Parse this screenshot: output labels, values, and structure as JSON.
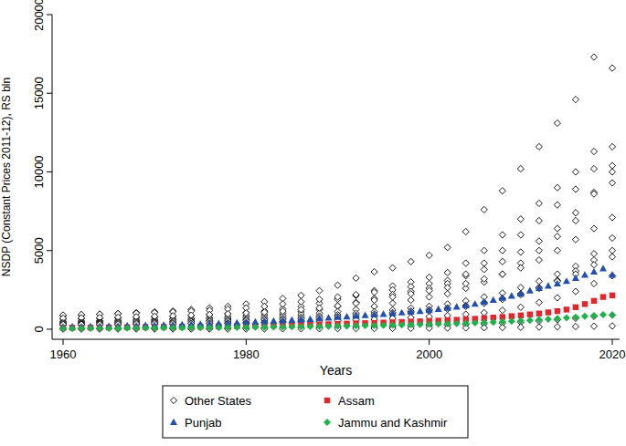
{
  "chart_data": {
    "type": "scatter",
    "x_label": "Years",
    "y_label": "NSDP (Constant Prices 2011-12), RS bln",
    "xlim": [
      1958.8,
      2020.8
    ],
    "xticks": [
      1960,
      1980,
      2000,
      2020
    ],
    "ylim": [
      -640,
      20000
    ],
    "yticks": [
      0,
      5000,
      10000,
      15000,
      20000
    ],
    "grid": false,
    "legend": "bottom",
    "series": [
      {
        "name": "Other States",
        "color": "#000000",
        "marker": "diamond_open",
        "x": [
          1960,
          1962,
          1964,
          1966,
          1968,
          1970,
          1972,
          1974,
          1976,
          1978,
          1980,
          1982,
          1984,
          1986,
          1988,
          1990,
          1992,
          1994,
          1996,
          1998,
          2000,
          2002,
          2004,
          2006,
          2008,
          2010,
          2012,
          2014,
          2016,
          2018,
          2020,
          1960,
          1962,
          1964,
          1966,
          1968,
          1970,
          1972,
          1974,
          1976,
          1978,
          1980,
          1982,
          1984,
          1986,
          1988,
          1990,
          1992,
          1994,
          1996,
          1998,
          2000,
          2002,
          2004,
          2006,
          2008,
          2010,
          2012,
          2014,
          2016,
          2018,
          2020,
          1960,
          1962,
          1964,
          1966,
          1968,
          1970,
          1972,
          1974,
          1976,
          1978,
          1980,
          1982,
          1984,
          1986,
          1988,
          1990,
          1992,
          1994,
          1996,
          1998,
          2000,
          2002,
          2004,
          2006,
          2008,
          2010,
          2012,
          2014,
          2016,
          2018,
          2020,
          1960,
          1962,
          1964,
          1966,
          1968,
          1970,
          1972,
          1974,
          1976,
          1978,
          1980,
          1982,
          1984,
          1986,
          1988,
          1990,
          1992,
          1994,
          1996,
          1998,
          2000,
          2002,
          2004,
          2006,
          2008,
          2010,
          2012,
          2014,
          2016,
          2018,
          2020,
          1960,
          1962,
          1964,
          1966,
          1968,
          1970,
          1972,
          1974,
          1976,
          1978,
          1980,
          1982,
          1984,
          1986,
          1988,
          1990,
          1992,
          1994,
          1996,
          1998,
          2000,
          2002,
          2004,
          2006,
          2008,
          2010,
          2012,
          2014,
          2016,
          2018,
          2020,
          1960,
          1962,
          1964,
          1966,
          1968,
          1970,
          1972,
          1974,
          1976,
          1978,
          1980,
          1982,
          1984,
          1986,
          1988,
          1990,
          1992,
          1994,
          1996,
          1998,
          2000,
          2002,
          2004,
          2006,
          2008,
          2010,
          2012,
          2014,
          2016,
          2018,
          2020,
          1960,
          1962,
          1964,
          1966,
          1968,
          1970,
          1972,
          1974,
          1976,
          1978,
          1980,
          1982,
          1984,
          1986,
          1988,
          1990,
          1992,
          1994,
          1996,
          1998,
          2000,
          2002,
          2004,
          2006,
          2008,
          2010,
          2012,
          2014,
          2016,
          2018,
          2020,
          1960,
          1962,
          1964,
          1966,
          1968,
          1970,
          1972,
          1974,
          1976,
          1978,
          1980,
          1982,
          1984,
          1986,
          1988,
          1990,
          1992,
          1994,
          1996,
          1998,
          2000,
          2002,
          2004,
          2006,
          2008,
          2010,
          2012,
          2014,
          2016,
          2018,
          2020,
          1960,
          1962,
          1964,
          1966,
          1968,
          1970,
          1972,
          1974,
          1976,
          1978,
          1980,
          1982,
          1984,
          1986,
          1988,
          1990,
          1992,
          1994,
          1996,
          1998,
          2000,
          2002,
          2004,
          2006,
          2008,
          2010,
          2012,
          2014,
          2016,
          2018,
          2020,
          1960,
          1962,
          1964,
          1966,
          1968,
          1970,
          1972,
          1974,
          1976,
          1978,
          1980,
          1982,
          1984,
          1986,
          1988,
          1990,
          1992,
          1994,
          1996,
          1998,
          2000,
          2002,
          2004,
          2006,
          2008,
          2010,
          2012,
          2014,
          2016,
          2018,
          2020,
          1960,
          1962,
          1964,
          1966,
          1968,
          1970,
          1972,
          1974,
          1976,
          1978,
          1980,
          1982,
          1984,
          1986,
          1988,
          1990,
          1992,
          1994,
          1996,
          1998,
          2000,
          2002,
          2004,
          2006,
          2008,
          2010,
          2012,
          2014,
          2016,
          2018,
          2020,
          1960,
          1962,
          1964,
          1966,
          1968,
          1970,
          1972,
          1974,
          1976,
          1978,
          1980,
          1982,
          1984,
          1986,
          1988,
          1990,
          1992,
          1994,
          1996,
          1998,
          2000,
          2002,
          2004,
          2006,
          2008,
          2010,
          2012,
          2014,
          2016,
          2018,
          2020
        ],
        "values": [
          850,
          900,
          950,
          1000,
          1050,
          1100,
          1150,
          1250,
          1350,
          1450,
          1600,
          1750,
          1950,
          2150,
          2450,
          2800,
          3250,
          3650,
          3900,
          4300,
          4700,
          5200,
          6200,
          7600,
          8800,
          10200,
          11600,
          13100,
          14600,
          17300,
          16600,
          650,
          680,
          700,
          720,
          750,
          780,
          820,
          870,
          920,
          980,
          1050,
          1150,
          1300,
          1450,
          1650,
          1900,
          2150,
          2450,
          2750,
          3000,
          3300,
          3600,
          4200,
          5000,
          6000,
          7000,
          8000,
          9000,
          10000,
          11300,
          11600,
          900,
          930,
          960,
          990,
          1020,
          1060,
          1100,
          1150,
          1200,
          1280,
          1350,
          1450,
          1600,
          1750,
          1900,
          2050,
          2200,
          2350,
          2500,
          2700,
          2900,
          3100,
          3400,
          3800,
          4300,
          4900,
          5600,
          6400,
          7400,
          8700,
          10400,
          500,
          520,
          540,
          570,
          600,
          630,
          660,
          700,
          740,
          800,
          860,
          920,
          1000,
          1100,
          1250,
          1450,
          1700,
          1950,
          2200,
          2400,
          2600,
          2900,
          3500,
          4200,
          5000,
          6000,
          6900,
          7900,
          8900,
          10200,
          10000,
          450,
          470,
          490,
          510,
          530,
          560,
          590,
          620,
          650,
          690,
          730,
          780,
          850,
          930,
          1020,
          1120,
          1250,
          1450,
          1650,
          1850,
          2050,
          2250,
          2600,
          3000,
          3500,
          4200,
          5000,
          5900,
          6900,
          8600,
          9300,
          700,
          720,
          740,
          760,
          790,
          820,
          850,
          890,
          930,
          980,
          1030,
          1080,
          1150,
          1250,
          1350,
          1480,
          1650,
          1850,
          2050,
          2250,
          2450,
          2650,
          2900,
          3200,
          3500,
          3900,
          4400,
          5000,
          5700,
          6400,
          7100,
          400,
          415,
          430,
          445,
          460,
          480,
          500,
          525,
          550,
          580,
          620,
          660,
          710,
          770,
          840,
          920,
          1010,
          1110,
          1220,
          1340,
          1460,
          1600,
          1800,
          2050,
          2300,
          2650,
          3050,
          3500,
          4000,
          4800,
          5800,
          350,
          365,
          380,
          395,
          410,
          430,
          450,
          470,
          495,
          520,
          550,
          580,
          620,
          670,
          730,
          800,
          880,
          960,
          1050,
          1150,
          1250,
          1350,
          1500,
          1700,
          1950,
          2250,
          2650,
          3100,
          3700,
          4400,
          5000,
          250,
          260,
          270,
          285,
          300,
          315,
          330,
          350,
          370,
          395,
          420,
          450,
          490,
          540,
          600,
          670,
          750,
          840,
          940,
          1050,
          1160,
          1280,
          1450,
          1650,
          1900,
          2200,
          2600,
          3050,
          3500,
          4100,
          4600,
          300,
          310,
          320,
          330,
          340,
          350,
          360,
          370,
          380,
          390,
          400,
          420,
          450,
          480,
          520,
          560,
          600,
          640,
          690,
          740,
          800,
          870,
          950,
          1050,
          1200,
          1400,
          1700,
          2000,
          2400,
          2900,
          3400,
          40,
          42,
          45,
          48,
          52,
          56,
          60,
          65,
          70,
          76,
          82,
          90,
          100,
          110,
          122,
          135,
          150,
          168,
          188,
          210,
          235,
          265,
          300,
          340,
          390,
          450,
          520,
          600,
          700,
          820,
          900,
          10,
          11,
          12,
          13,
          14,
          15,
          16,
          17,
          18,
          20,
          22,
          24,
          27,
          30,
          34,
          38,
          43,
          48,
          54,
          60,
          67,
          75,
          84,
          95,
          108,
          122,
          138,
          155,
          172,
          190,
          205
        ]
      },
      {
        "name": "Assam",
        "color": "#e8242a",
        "marker": "square",
        "x": [
          1960,
          1961,
          1962,
          1963,
          1964,
          1965,
          1966,
          1967,
          1968,
          1969,
          1970,
          1971,
          1972,
          1973,
          1974,
          1975,
          1976,
          1977,
          1978,
          1979,
          1980,
          1981,
          1982,
          1983,
          1984,
          1985,
          1986,
          1987,
          1988,
          1989,
          1990,
          1991,
          1992,
          1993,
          1994,
          1995,
          1996,
          1997,
          1998,
          1999,
          2000,
          2001,
          2002,
          2003,
          2004,
          2005,
          2006,
          2007,
          2008,
          2009,
          2010,
          2011,
          2012,
          2013,
          2014,
          2015,
          2016,
          2017,
          2018,
          2019,
          2020
        ],
        "values": [
          90,
          95,
          100,
          105,
          110,
          115,
          120,
          125,
          130,
          135,
          140,
          145,
          150,
          155,
          160,
          165,
          170,
          180,
          190,
          200,
          210,
          220,
          230,
          240,
          250,
          260,
          275,
          290,
          305,
          320,
          340,
          355,
          370,
          385,
          400,
          420,
          440,
          460,
          480,
          500,
          520,
          545,
          570,
          600,
          630,
          660,
          700,
          740,
          780,
          830,
          880,
          940,
          1000,
          1070,
          1150,
          1250,
          1400,
          1600,
          1800,
          2050,
          2150
        ]
      },
      {
        "name": "Punjab",
        "color": "#1f4fb5",
        "marker": "triangle",
        "x": [
          1960,
          1961,
          1962,
          1963,
          1964,
          1965,
          1966,
          1967,
          1968,
          1969,
          1970,
          1971,
          1972,
          1973,
          1974,
          1975,
          1976,
          1977,
          1978,
          1979,
          1980,
          1981,
          1982,
          1983,
          1984,
          1985,
          1986,
          1987,
          1988,
          1989,
          1990,
          1991,
          1992,
          1993,
          1994,
          1995,
          1996,
          1997,
          1998,
          1999,
          2000,
          2001,
          2002,
          2003,
          2004,
          2005,
          2006,
          2007,
          2008,
          2009,
          2010,
          2011,
          2012,
          2013,
          2014,
          2015,
          2016,
          2017,
          2018,
          2019,
          2020
        ],
        "values": [
          150,
          160,
          165,
          175,
          185,
          195,
          205,
          215,
          225,
          240,
          250,
          265,
          280,
          295,
          310,
          325,
          345,
          365,
          385,
          410,
          440,
          465,
          490,
          520,
          550,
          580,
          610,
          640,
          680,
          720,
          760,
          800,
          840,
          880,
          920,
          960,
          1000,
          1050,
          1100,
          1150,
          1200,
          1270,
          1340,
          1420,
          1500,
          1600,
          1720,
          1850,
          1980,
          2120,
          2250,
          2450,
          2600,
          2750,
          2900,
          3050,
          3250,
          3450,
          3650,
          3850,
          3450
        ]
      },
      {
        "name": "Jammu and Kashmir",
        "color": "#1db34a",
        "marker": "diamond",
        "x": [
          1960,
          1961,
          1962,
          1963,
          1964,
          1965,
          1966,
          1967,
          1968,
          1969,
          1970,
          1971,
          1972,
          1973,
          1974,
          1975,
          1976,
          1977,
          1978,
          1979,
          1980,
          1981,
          1982,
          1983,
          1984,
          1985,
          1986,
          1987,
          1988,
          1989,
          1990,
          1991,
          1992,
          1993,
          1994,
          1995,
          1996,
          1997,
          1998,
          1999,
          2000,
          2001,
          2002,
          2003,
          2004,
          2005,
          2006,
          2007,
          2008,
          2009,
          2010,
          2011,
          2012,
          2013,
          2014,
          2015,
          2016,
          2017,
          2018,
          2019,
          2020
        ],
        "values": [
          45,
          48,
          50,
          53,
          56,
          59,
          62,
          65,
          68,
          72,
          76,
          80,
          84,
          88,
          92,
          96,
          100,
          105,
          110,
          115,
          120,
          126,
          132,
          138,
          145,
          152,
          160,
          168,
          176,
          185,
          195,
          205,
          215,
          225,
          235,
          245,
          255,
          270,
          285,
          300,
          315,
          330,
          345,
          360,
          380,
          400,
          420,
          445,
          470,
          500,
          530,
          560,
          600,
          640,
          680,
          720,
          770,
          820,
          870,
          930,
          900
        ]
      }
    ]
  }
}
